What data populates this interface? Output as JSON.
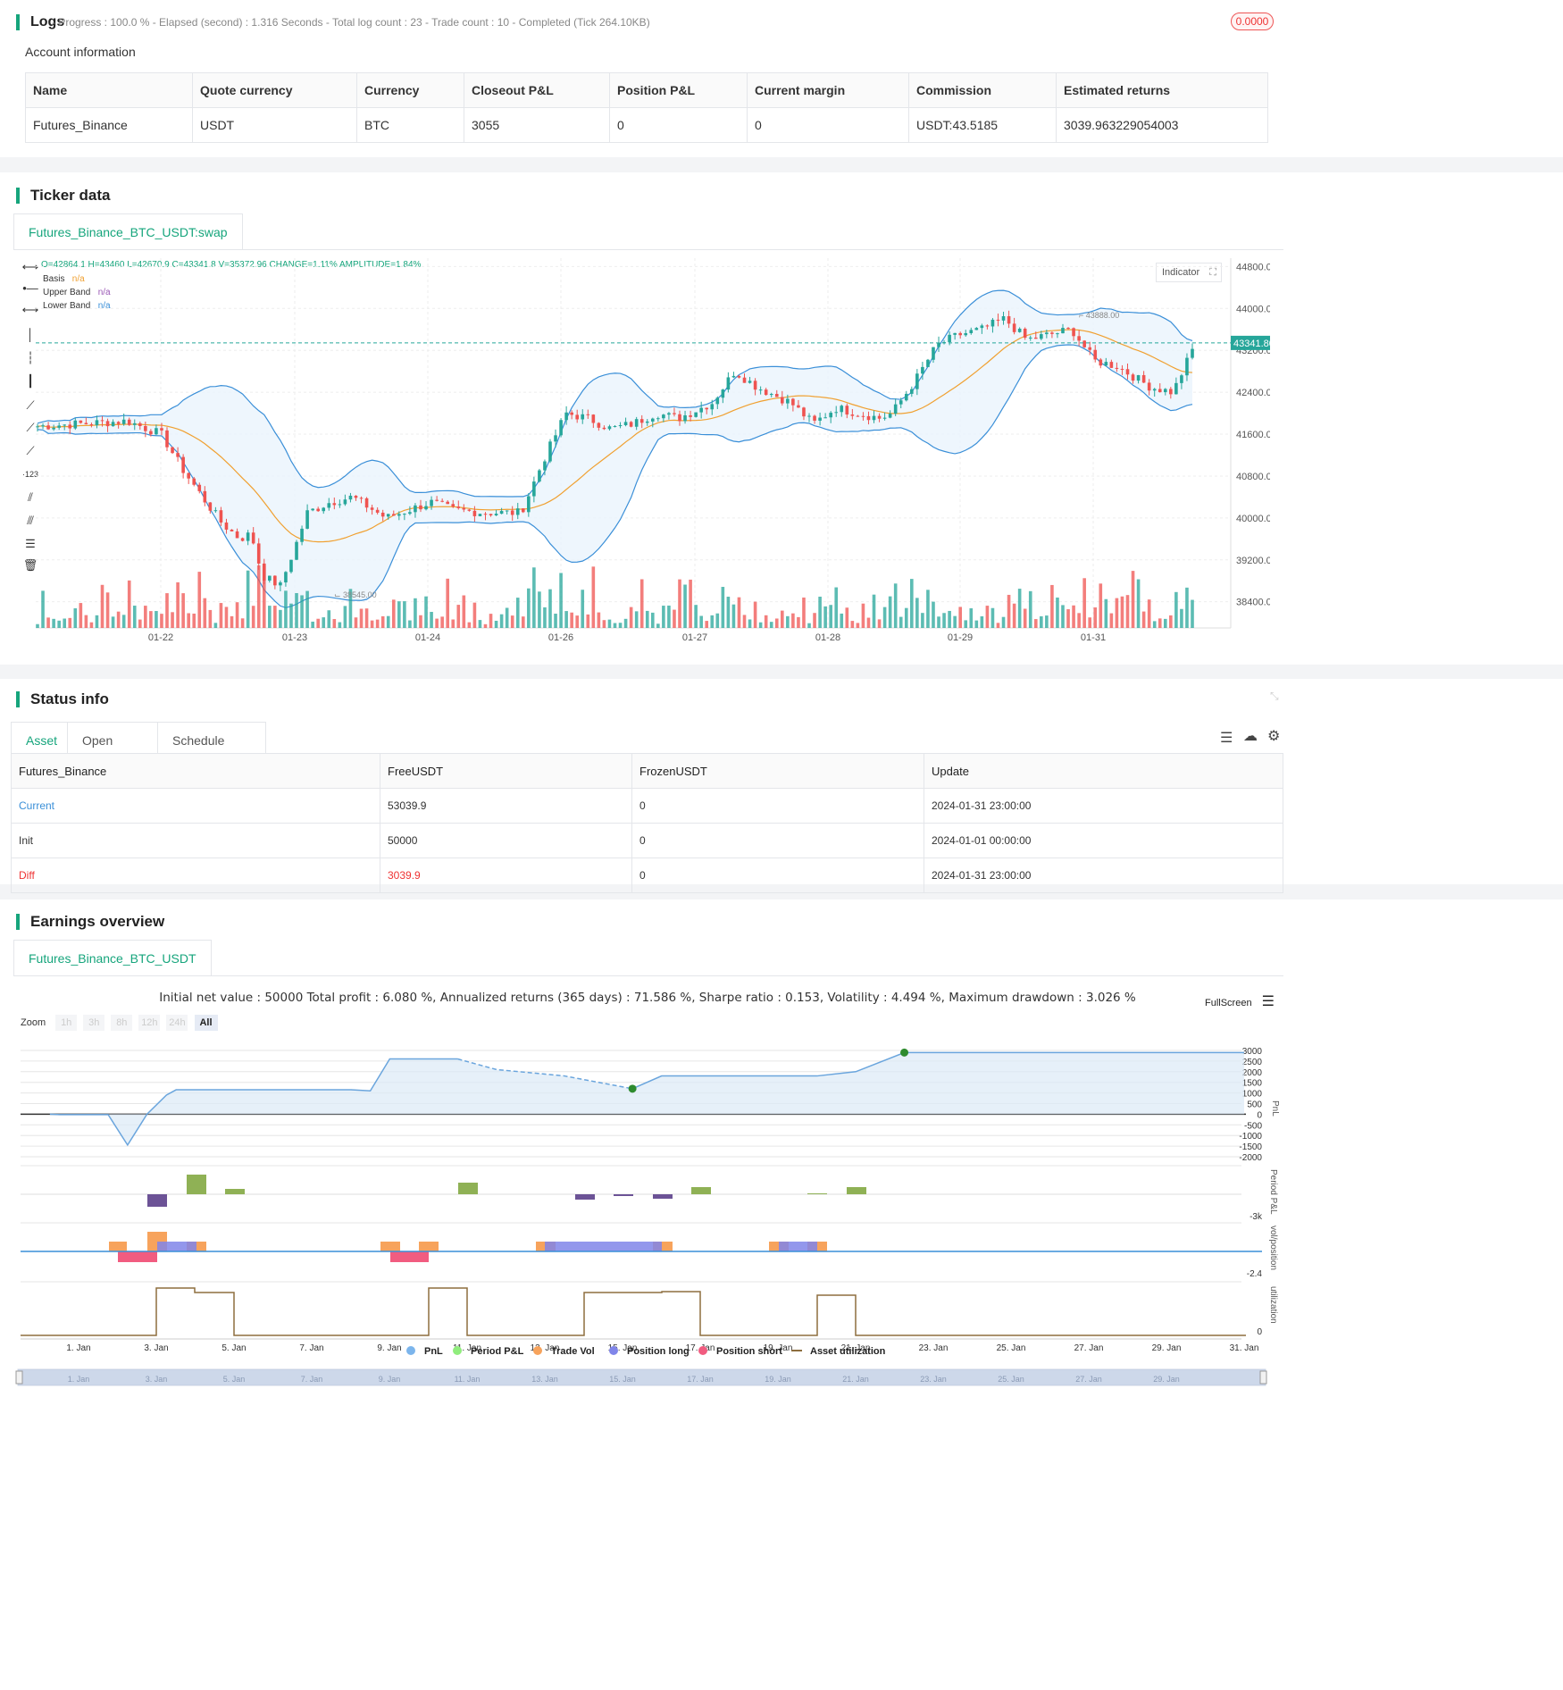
{
  "logs": {
    "title": "Logs",
    "summary": "- Progress : 100.0 % - Elapsed (second) : 1.316  Seconds - Total log count : 23 - Trade count : 10 - Completed (Tick 264.10KB)",
    "badge": "0.0000"
  },
  "account": {
    "title": "Account information",
    "headers": [
      "Name",
      "Quote currency",
      "Currency",
      "Closeout P&L",
      "Position P&L",
      "Current margin",
      "Commission",
      "Estimated returns"
    ],
    "row": [
      "Futures_Binance",
      "USDT",
      "BTC",
      "3055",
      "0",
      "0",
      "USDT:43.5185",
      "3039.963229054003"
    ]
  },
  "ticker": {
    "title": "Ticker data",
    "tab": "Futures_Binance_BTC_USDT:swap",
    "ohlc": "O=42864.1 H=43460 L=42670.9 C=43341.8 V=35372.96 CHANGE=1.11% AMPLITUDE=1.84%",
    "legend": [
      {
        "name": "Basis",
        "value": "n/a",
        "color": "#f0a030"
      },
      {
        "name": "Upper Band",
        "value": "n/a",
        "color": "#9b59b6"
      },
      {
        "name": "Lower Band",
        "value": "n/a",
        "color": "#3a8fd8"
      }
    ],
    "indicator_btn": "Indicator",
    "price_tag": "43341.80",
    "high_marker": "43888.00",
    "low_marker": "38545.00",
    "y_ticks": [
      "44800.00",
      "44000.00",
      "43200.00",
      "42400.00",
      "41600.00",
      "40800.00",
      "40000.00",
      "39200.00",
      "38400.00"
    ],
    "x_ticks": [
      "01-22",
      "01-23",
      "01-24",
      "01-26",
      "01-27",
      "01-28",
      "01-29",
      "01-31"
    ],
    "colors": {
      "up": "#26a69a",
      "down": "#ef5350",
      "band": "#3a8fd8",
      "basis": "#f0a030"
    }
  },
  "status": {
    "title": "Status info",
    "tabs": [
      "Asset",
      "Open orders",
      "Schedule orders"
    ],
    "headers": [
      "Futures_Binance",
      "FreeUSDT",
      "FrozenUSDT",
      "Update"
    ],
    "rows": [
      [
        "Current",
        "53039.9",
        "0",
        "2024-01-31 23:00:00"
      ],
      [
        "Init",
        "50000",
        "0",
        "2024-01-01 00:00:00"
      ],
      [
        "Diff",
        "3039.9",
        "0",
        "2024-01-31 23:00:00"
      ]
    ]
  },
  "earnings": {
    "title": "Earnings overview",
    "tab": "Futures_Binance_BTC_USDT",
    "summary": "Initial net value : 50000 Total profit : 6.080 %, Annualized returns (365 days) : 71.586 %, Sharpe ratio : 0.153, Volatility : 4.494 %, Maximum drawdown : 3.026 %",
    "fullscreen": "FullScreen",
    "zoom_label": "Zoom",
    "zoom_options": [
      "1h",
      "3h",
      "8h",
      "12h",
      "24h",
      "All"
    ],
    "pnl_ticks": [
      "3000",
      "2500",
      "2000",
      "1500",
      "1000",
      "500",
      "0",
      "-500",
      "-1000",
      "-1500",
      "-2000"
    ],
    "axis_labels": {
      "pnl": "PnL",
      "period": "Period P&L",
      "vol": "vol/position",
      "util": "utilization"
    },
    "period_min": "-3k",
    "vol_min": "-2.4",
    "util_zero": "0",
    "x_ticks": [
      "1. Jan",
      "3. Jan",
      "5. Jan",
      "7. Jan",
      "9. Jan",
      "11. Jan",
      "13. Jan",
      "15. Jan",
      "17. Jan",
      "19. Jan",
      "21. Jan",
      "23. Jan",
      "25. Jan",
      "27. Jan",
      "29. Jan",
      "31. Jan"
    ],
    "legend": [
      {
        "name": "PnL",
        "color": "#7cb5ec"
      },
      {
        "name": "Period P&L",
        "color": "#90ed7d"
      },
      {
        "name": "Trade Vol",
        "color": "#f7a35c"
      },
      {
        "name": "Position long",
        "color": "#8085e9"
      },
      {
        "name": "Position short",
        "color": "#f15c80"
      },
      {
        "name": "Asset utilization",
        "color": "#8d6e3f"
      }
    ],
    "navigator_ticks": [
      "1. Jan",
      "3. Jan",
      "5. Jan",
      "7. Jan",
      "9. Jan",
      "11. Jan",
      "13. Jan",
      "15. Jan",
      "17. Jan",
      "19. Jan",
      "21. Jan",
      "23. Jan",
      "25. Jan",
      "27. Jan",
      "29. Jan"
    ]
  }
}
